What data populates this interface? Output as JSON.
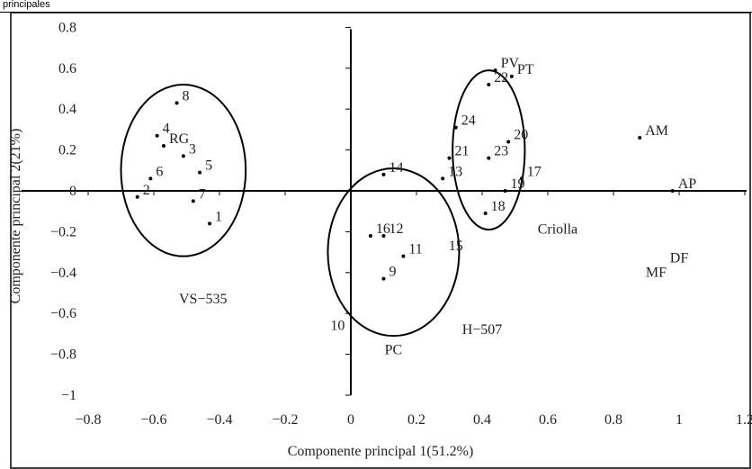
{
  "header_fragment": "principales",
  "chart_data": {
    "type": "scatter",
    "title": "",
    "xlabel": "Componente principal 1(51.2%)",
    "ylabel": "Componente principal 2(21%)",
    "xlim": [
      -0.8,
      1.2
    ],
    "ylim": [
      -1,
      0.8
    ],
    "xticks": [
      -0.8,
      -0.6,
      -0.4,
      -0.2,
      0,
      0.2,
      0.4,
      0.6,
      0.8,
      1,
      1.2
    ],
    "xtick_labels": [
      "−0.8",
      "−0.6",
      "−0.4",
      "−0.2",
      "0",
      "0.2",
      "0.4",
      "0.6",
      "0.8",
      "1",
      "1.2"
    ],
    "yticks": [
      0.8,
      0.6,
      0.4,
      0.2,
      0,
      -0.2,
      -0.4,
      -0.6,
      -0.8,
      -1
    ],
    "ytick_labels": [
      "0.8",
      "0.6",
      "0.4",
      "0.2",
      "0",
      "−0.2",
      "−0.4",
      "−0.6",
      "−0.8",
      "−1"
    ],
    "grid": false,
    "points": [
      {
        "label": "8",
        "x": -0.53,
        "y": 0.43
      },
      {
        "label": "4",
        "x": -0.59,
        "y": 0.27
      },
      {
        "label": "RG",
        "x": -0.57,
        "y": 0.22
      },
      {
        "label": "3",
        "x": -0.51,
        "y": 0.17
      },
      {
        "label": "6",
        "x": -0.61,
        "y": 0.06
      },
      {
        "label": "2",
        "x": -0.65,
        "y": -0.03
      },
      {
        "label": "5",
        "x": -0.46,
        "y": 0.09
      },
      {
        "label": "7",
        "x": -0.48,
        "y": -0.05
      },
      {
        "label": "1",
        "x": -0.43,
        "y": -0.16
      },
      {
        "label": "14",
        "x": 0.1,
        "y": 0.08
      },
      {
        "label": "13",
        "x": 0.28,
        "y": 0.06
      },
      {
        "label": "12",
        "x": 0.1,
        "y": -0.22
      },
      {
        "label": "16",
        "x": 0.06,
        "y": -0.22
      },
      {
        "label": "11",
        "x": 0.16,
        "y": -0.32
      },
      {
        "label": "9",
        "x": 0.1,
        "y": -0.43
      },
      {
        "label": "PV",
        "x": 0.44,
        "y": 0.59
      },
      {
        "label": "22",
        "x": 0.42,
        "y": 0.52
      },
      {
        "label": "PT",
        "x": 0.49,
        "y": 0.56
      },
      {
        "label": "24",
        "x": 0.32,
        "y": 0.31
      },
      {
        "label": "20",
        "x": 0.48,
        "y": 0.24
      },
      {
        "label": "21",
        "x": 0.3,
        "y": 0.16
      },
      {
        "label": "23",
        "x": 0.42,
        "y": 0.16
      },
      {
        "label": "17",
        "x": 0.52,
        "y": 0.06
      },
      {
        "label": "19",
        "x": 0.47,
        "y": 0.0
      },
      {
        "label": "18",
        "x": 0.41,
        "y": -0.11
      },
      {
        "label": "AM",
        "x": 0.88,
        "y": 0.26
      },
      {
        "label": "AP",
        "x": 0.98,
        "y": 0.0
      }
    ],
    "annotations": [
      {
        "text": "Criolla",
        "x": 0.63,
        "y": -0.21
      },
      {
        "text": "DF",
        "x": 1.0,
        "y": -0.35
      },
      {
        "text": "MF",
        "x": 0.93,
        "y": -0.42
      },
      {
        "text": "VS−535",
        "x": -0.45,
        "y": -0.55
      },
      {
        "text": "H−507",
        "x": 0.4,
        "y": -0.7
      },
      {
        "text": "PC",
        "x": 0.13,
        "y": -0.8
      },
      {
        "text": "15",
        "x": 0.32,
        "y": -0.29
      },
      {
        "text": "10",
        "x": -0.04,
        "y": -0.68
      }
    ],
    "groups": [
      {
        "name": "VS−535",
        "cx": -0.51,
        "cy": 0.1,
        "rx": 0.19,
        "ry": 0.42
      },
      {
        "name": "PC",
        "cx": 0.13,
        "cy": -0.3,
        "rx": 0.2,
        "ry": 0.41
      },
      {
        "name": "H−507",
        "cx": 0.42,
        "cy": 0.2,
        "rx": 0.11,
        "ry": 0.39
      }
    ]
  }
}
